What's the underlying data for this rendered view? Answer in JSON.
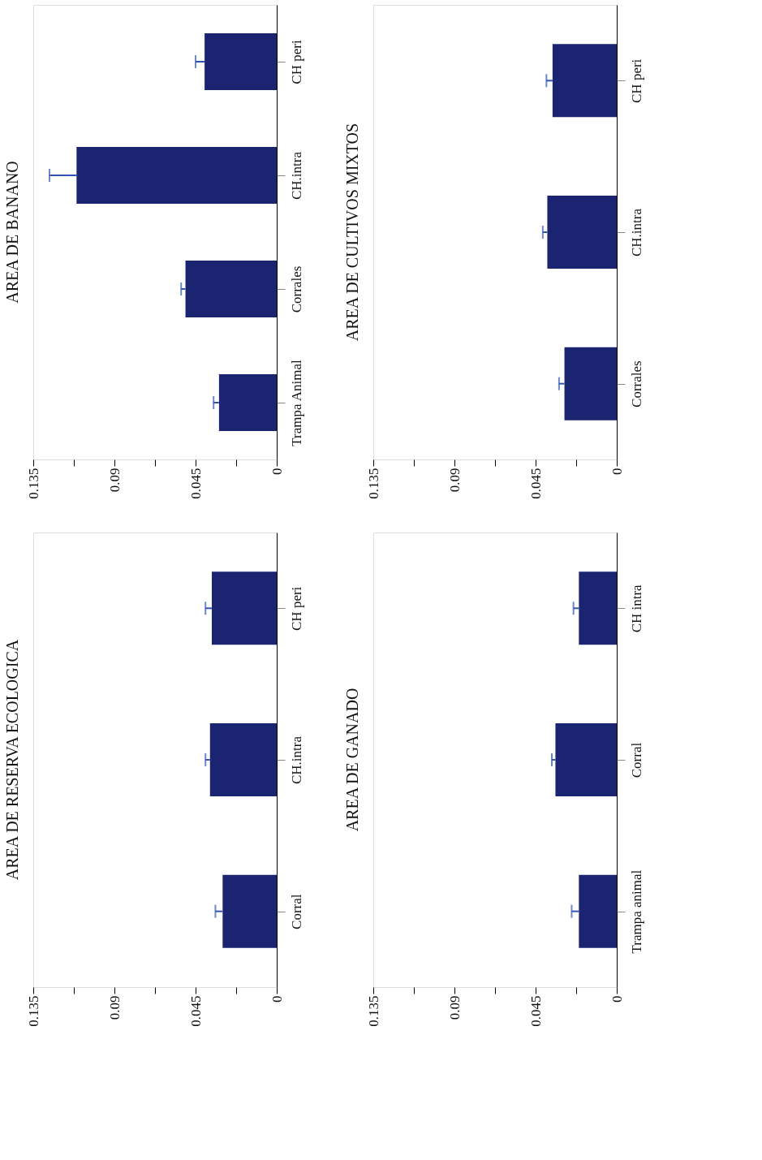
{
  "chart_data": [
    {
      "type": "bar",
      "orientation": "horizontal",
      "title": "AREA DE BANANO",
      "categories": [
        "CH peri",
        "CH.intra",
        "Corrales",
        "Trampa Animal"
      ],
      "values": [
        0.04,
        0.111,
        0.0506,
        0.032
      ],
      "errors": [
        [
          0.04,
          0.045
        ],
        [
          0.111,
          0.126
        ],
        [
          0.0506,
          0.053
        ],
        [
          0.032,
          0.035
        ]
      ],
      "color": "#1b2470",
      "xlim": [
        0.135,
        0
      ],
      "xticks": [
        0.135,
        {
          "value": 0.1125,
          "label": null
        },
        0.09,
        {
          "value": 0.0675,
          "label": null
        },
        0.045,
        {
          "value": 0.0225,
          "label": null
        },
        0
      ],
      "grid": false
    },
    {
      "type": "bar",
      "orientation": "horizontal",
      "title": "AREA DE CULTIVOS MIXTOS",
      "categories": [
        "CH peri",
        "CH.intra",
        "Corrales"
      ],
      "values": [
        0.0356,
        0.0385,
        0.029
      ],
      "errors": [
        [
          0.0356,
          0.039
        ],
        [
          0.0385,
          0.041
        ],
        [
          0.029,
          0.032
        ]
      ],
      "color": "#1b2470",
      "xlim": [
        0.135,
        0
      ],
      "xticks": [
        0.135,
        {
          "value": 0.1125,
          "label": null
        },
        0.09,
        {
          "value": 0.0675,
          "label": null
        },
        0.045,
        {
          "value": 0.0225,
          "label": null
        },
        0
      ],
      "grid": false
    },
    {
      "type": "bar",
      "orientation": "horizontal",
      "title": "AREA DE RESERVA ECOLOGICA",
      "categories": [
        "CH peri",
        "CH.intra",
        "Corral"
      ],
      "values": [
        0.036,
        0.037,
        0.03
      ],
      "errors": [
        [
          0.036,
          0.0395
        ],
        [
          0.037,
          0.0395
        ],
        [
          0.03,
          0.034
        ]
      ],
      "color": "#1b2470",
      "xlim": [
        0.135,
        0
      ],
      "xticks": [
        0.135,
        {
          "value": 0.1125,
          "label": null
        },
        0.09,
        {
          "value": 0.0675,
          "label": null
        },
        0.045,
        {
          "value": 0.0225,
          "label": null
        },
        0
      ],
      "grid": false
    },
    {
      "type": "bar",
      "orientation": "horizontal",
      "title": "AREA DE GANADO",
      "categories": [
        "CH intra",
        "Corral",
        "Trampa animal"
      ],
      "values": [
        0.021,
        0.034,
        0.021
      ],
      "errors": [
        [
          0.021,
          0.024
        ],
        [
          0.034,
          0.036
        ],
        [
          0.021,
          0.025
        ]
      ],
      "color": "#1b2470",
      "xlim": [
        0.135,
        0
      ],
      "xticks": [
        0.135,
        {
          "value": 0.1125,
          "label": null
        },
        0.09,
        {
          "value": 0.0675,
          "label": null
        },
        0.045,
        {
          "value": 0.0225,
          "label": null
        },
        0
      ],
      "grid": false
    }
  ]
}
